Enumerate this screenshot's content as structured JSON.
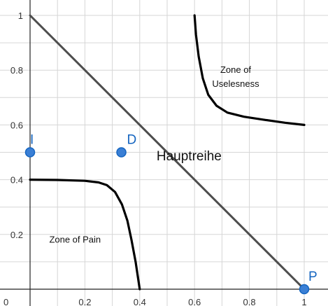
{
  "chart_data": {
    "type": "scatter",
    "xlim": [
      0,
      1
    ],
    "ylim": [
      0,
      1
    ],
    "grid": true,
    "x_ticks": [
      0,
      0.2,
      0.4,
      0.6,
      0.8,
      1
    ],
    "x_tick_labels": [
      "0",
      "0.2",
      "0.4",
      "0.6",
      "0.8",
      "1"
    ],
    "y_ticks": [
      0.2,
      0.4,
      0.6,
      0.8,
      1
    ],
    "y_tick_labels": [
      "0.2",
      "0.4",
      "0.6",
      "0.8",
      "1"
    ],
    "main_line": {
      "label": "Hauptreihe",
      "points": [
        [
          0,
          1
        ],
        [
          1,
          0
        ]
      ],
      "color": "#4d4d4d",
      "label_pos": [
        0.58,
        0.47
      ]
    },
    "curves": [
      {
        "label": "Zone of Pain",
        "label_pos": [
          0.07,
          0.17
        ],
        "color": "#000000",
        "points": [
          [
            0,
            0.4
          ],
          [
            0.1,
            0.399
          ],
          [
            0.2,
            0.396
          ],
          [
            0.25,
            0.39
          ],
          [
            0.28,
            0.38
          ],
          [
            0.31,
            0.355
          ],
          [
            0.335,
            0.31
          ],
          [
            0.355,
            0.25
          ],
          [
            0.37,
            0.18
          ],
          [
            0.385,
            0.1
          ],
          [
            0.4,
            0
          ]
        ]
      },
      {
        "label": "Zone of\nUselesness",
        "label_lines": [
          "Zone of",
          "Uselesness"
        ],
        "label_pos": [
          0.75,
          0.79
        ],
        "color": "#000000",
        "points": [
          [
            0.6,
            1
          ],
          [
            0.605,
            0.93
          ],
          [
            0.615,
            0.85
          ],
          [
            0.63,
            0.77
          ],
          [
            0.65,
            0.71
          ],
          [
            0.68,
            0.67
          ],
          [
            0.72,
            0.645
          ],
          [
            0.78,
            0.63
          ],
          [
            0.86,
            0.618
          ],
          [
            0.93,
            0.608
          ],
          [
            1,
            0.6
          ]
        ]
      }
    ],
    "points": [
      {
        "label": "I",
        "x": 0,
        "y": 0.5
      },
      {
        "label": "D",
        "x": 0.333,
        "y": 0.5
      },
      {
        "label": "P",
        "x": 1,
        "y": 0
      }
    ],
    "point_color": "#1565c0",
    "point_fill": "#3a7fd5",
    "label_color": "#1565c0"
  }
}
